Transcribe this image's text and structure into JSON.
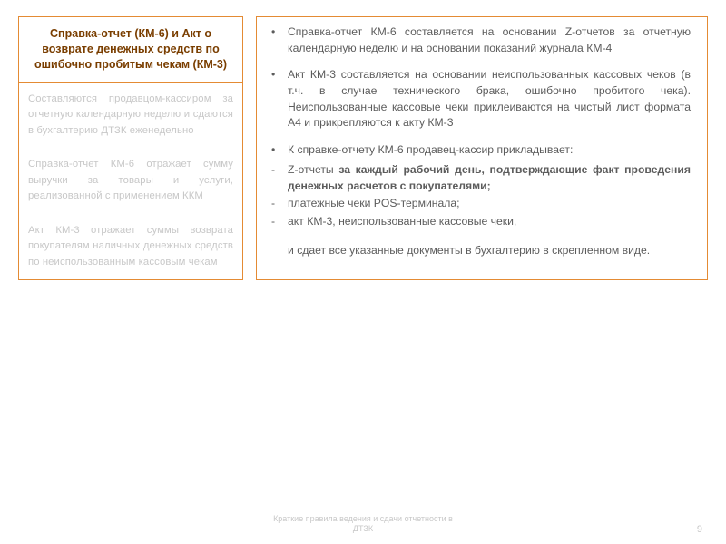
{
  "colors": {
    "border": "#e48b34",
    "header_text": "#7a3e00",
    "faded_text": "#c8c8c8",
    "body_text": "#5c5c5c",
    "right_text": "#5c5c5c",
    "background": "#ffffff"
  },
  "left": {
    "title": "Справка-отчет (КМ-6) и Акт о возврате денежных средств по ошибочно пробитым чекам (КМ-3)",
    "blocks": [
      "Составляются продавцом-кассиром за отчетную календарную неделю и сдаются в бухгалтерию ДТЗК еженедельно",
      "Справка-отчет КМ-6 отражает сумму выручки за товары и услуги, реализованной с применением ККМ",
      "Акт КМ-3 отражает суммы возврата покупателям наличных денежных средств по неиспользованным кассовым чекам"
    ]
  },
  "right": {
    "items": [
      {
        "type": "bullet",
        "text": "Справка-отчет КМ-6 составляется на основании Z-отчетов за отчетную календарную неделю и на основании показаний журнала КМ-4"
      },
      {
        "type": "bullet",
        "text": "   Акт КМ-3 составляется на основании неиспользованных кассовых чеков (в т.ч. в случае технического брака, ошибочно пробитого чека). Неиспользованные кассовые чеки приклеиваются на чистый лист формата А4 и прикрепляются к акту КМ-3"
      },
      {
        "type": "bullet",
        "text": "К справке-отчету КМ-6 продавец-кассир прикладывает:"
      },
      {
        "type": "dash",
        "bold": true,
        "text": "Z-отчеты за каждый рабочий день, подтверждающие факт проведения денежных расчетов с покупателями;"
      },
      {
        "type": "dash",
        "text": "платежные чеки POS-терминала;"
      },
      {
        "type": "dash",
        "text": "акт КМ-3, неиспользованные кассовые чеки,"
      }
    ],
    "trailing": "и сдает все указанные документы в бухгалтерию в скрепленном виде."
  },
  "footer": {
    "text": "Краткие правила ведения и сдачи отчетности в ДТЗК",
    "page_number": "9"
  }
}
